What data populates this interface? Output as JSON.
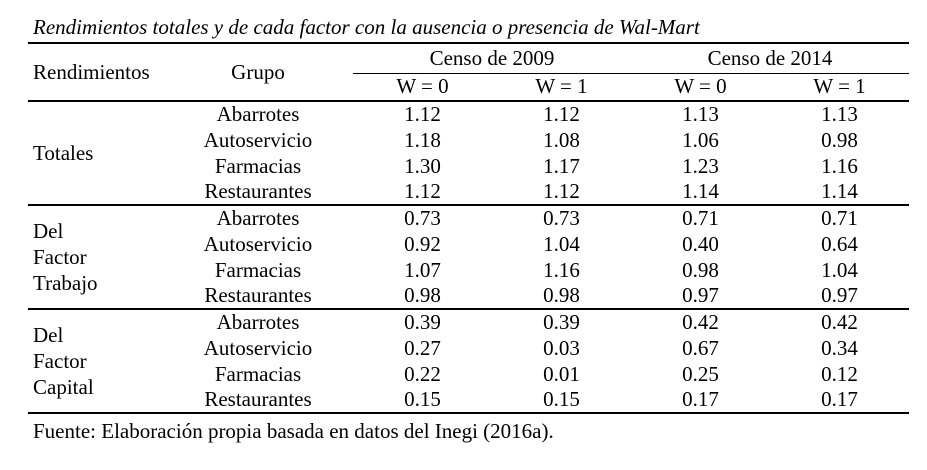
{
  "title": "Rendimientos totales y de cada factor con la ausencia o presencia de Wal-Mart",
  "source_note": "Fuente: Elaboración propia basada en datos del Inegi (2016a).",
  "colors": {
    "text": "#000000",
    "background": "#ffffff",
    "rule": "#000000"
  },
  "table": {
    "header": {
      "rendimientos": "Rendimientos",
      "grupo": "Grupo",
      "censo_groups": [
        "Censo de 2009",
        "Censo de 2014"
      ],
      "subheaders": [
        "W = 0",
        "W = 1",
        "W = 0",
        "W = 1"
      ]
    },
    "groups": [
      {
        "label": "Totales",
        "rows": [
          {
            "grupo": "Abarrotes",
            "values": [
              "1.12",
              "1.12",
              "1.13",
              "1.13"
            ]
          },
          {
            "grupo": "Autoservicio",
            "values": [
              "1.18",
              "1.08",
              "1.06",
              "0.98"
            ]
          },
          {
            "grupo": "Farmacias",
            "values": [
              "1.30",
              "1.17",
              "1.23",
              "1.16"
            ]
          },
          {
            "grupo": "Restaurantes",
            "values": [
              "1.12",
              "1.12",
              "1.14",
              "1.14"
            ]
          }
        ]
      },
      {
        "label": "Del\nFactor\nTrabajo",
        "rows": [
          {
            "grupo": "Abarrotes",
            "values": [
              "0.73",
              "0.73",
              "0.71",
              "0.71"
            ]
          },
          {
            "grupo": "Autoservicio",
            "values": [
              "0.92",
              "1.04",
              "0.40",
              "0.64"
            ]
          },
          {
            "grupo": "Farmacias",
            "values": [
              "1.07",
              "1.16",
              "0.98",
              "1.04"
            ]
          },
          {
            "grupo": "Restaurantes",
            "values": [
              "0.98",
              "0.98",
              "0.97",
              "0.97"
            ]
          }
        ]
      },
      {
        "label": "Del\nFactor\nCapital",
        "rows": [
          {
            "grupo": "Abarrotes",
            "values": [
              "0.39",
              "0.39",
              "0.42",
              "0.42"
            ]
          },
          {
            "grupo": "Autoservicio",
            "values": [
              "0.27",
              "0.03",
              "0.67",
              "0.34"
            ]
          },
          {
            "grupo": "Farmacias",
            "values": [
              "0.22",
              "0.01",
              "0.25",
              "0.12"
            ]
          },
          {
            "grupo": "Restaurantes",
            "values": [
              "0.15",
              "0.15",
              "0.17",
              "0.17"
            ]
          }
        ]
      }
    ]
  }
}
